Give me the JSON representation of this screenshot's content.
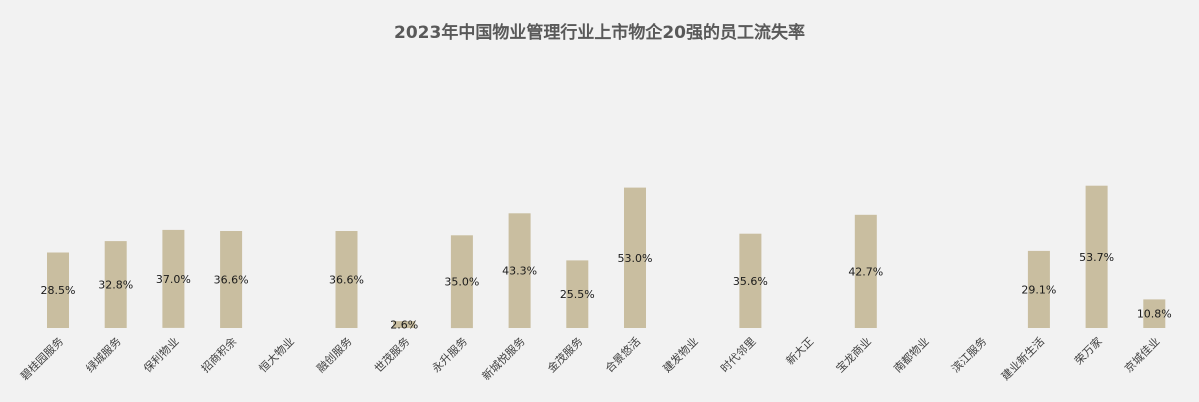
{
  "chart_data": {
    "type": "bar",
    "title": "2023年中国物业管理行业上市物企20强的员工流失率",
    "xlabel": "",
    "ylabel": "",
    "ylim": [
      0,
      60
    ],
    "grid": false,
    "legend": "none",
    "categories": [
      "碧桂园服务",
      "绿城服务",
      "保利物业",
      "招商积余",
      "恒大物业",
      "融创服务",
      "世茂服务",
      "永升服务",
      "新城悦服务",
      "金茂服务",
      "合景悠活",
      "建发物业",
      "时代邻里",
      "新大正",
      "宝龙商业",
      "南都物业",
      "滨江服务",
      "建业新生活",
      "荣万家",
      "京城佳业"
    ],
    "values": [
      28.5,
      32.8,
      37.0,
      36.6,
      null,
      36.6,
      2.6,
      35.0,
      43.3,
      25.5,
      53.0,
      null,
      35.6,
      null,
      42.7,
      null,
      null,
      29.1,
      53.7,
      10.8
    ],
    "data_labels": [
      "28.5%",
      "32.8%",
      "37.0%",
      "36.6%",
      "",
      "36.6%",
      "2.6%",
      "35.0%",
      "43.3%",
      "25.5%",
      "53.0%",
      "",
      "35.6%",
      "",
      "42.7%",
      "",
      "",
      "29.1%",
      "53.7%",
      "10.8%"
    ],
    "bar_color": "#c9bea0",
    "background_color": "#f2f2f2"
  }
}
